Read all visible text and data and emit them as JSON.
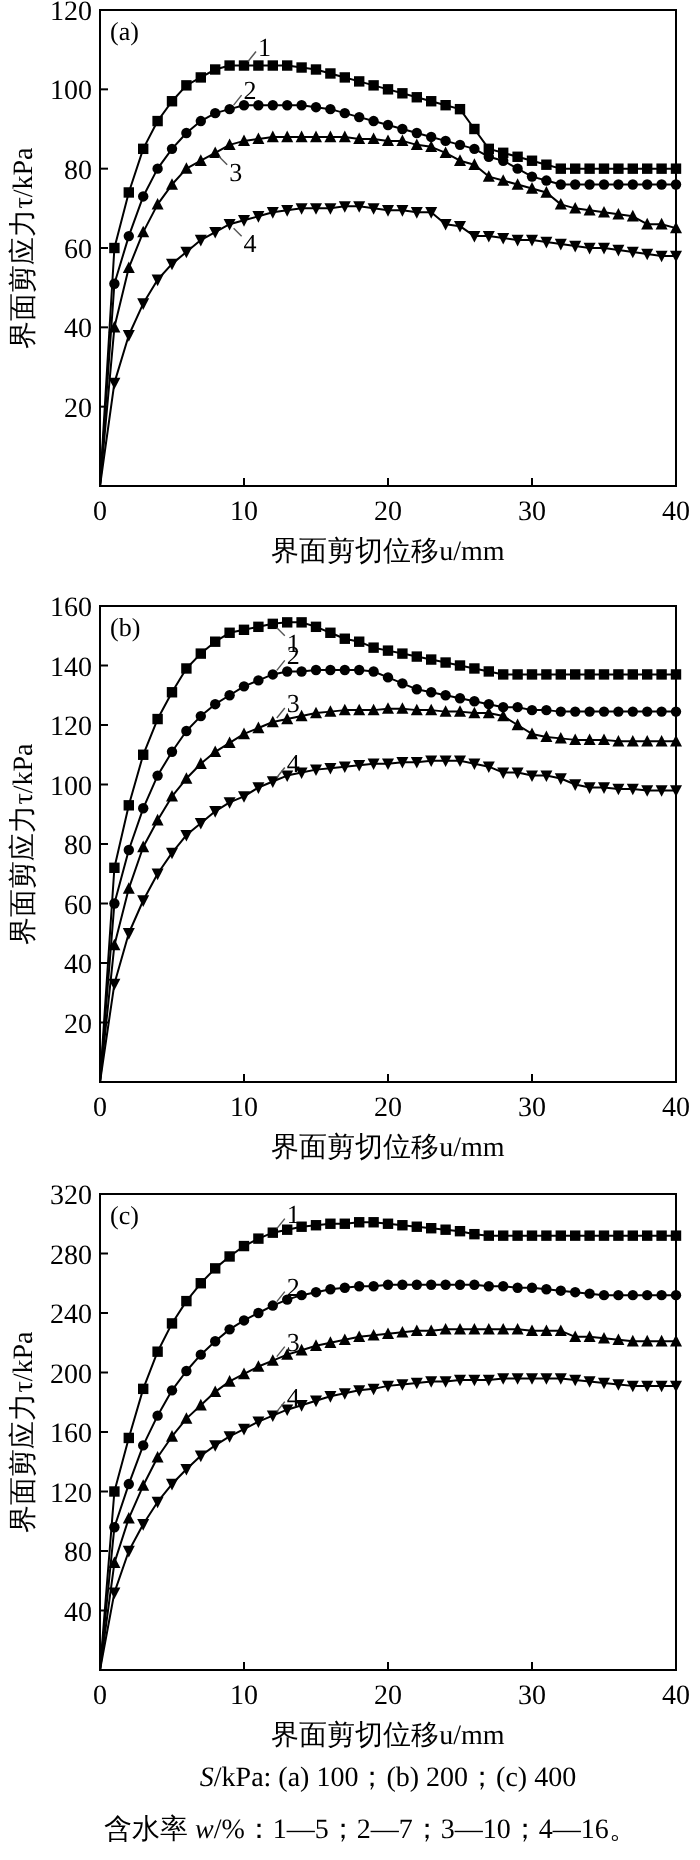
{
  "chart_data": [
    {
      "type": "line",
      "title": "(a)",
      "xlabel": "界面剪切位移u/mm",
      "ylabel": "界面剪应力τ/kPa",
      "xlim": [
        0,
        40
      ],
      "ylim": [
        0,
        120
      ],
      "xticks": [
        0,
        10,
        20,
        30,
        40
      ],
      "yticks": [
        20,
        40,
        60,
        80,
        100,
        120
      ],
      "x": [
        0,
        1,
        2,
        3,
        4,
        5,
        6,
        7,
        8,
        9,
        10,
        11,
        12,
        13,
        14,
        15,
        16,
        17,
        18,
        19,
        20,
        21,
        22,
        23,
        24,
        25,
        26,
        27,
        28,
        29,
        30,
        31,
        32,
        33,
        34,
        35,
        36,
        37,
        38,
        39,
        40
      ],
      "series": [
        {
          "name": "1",
          "color": "#000000",
          "marker": "square",
          "values": [
            0,
            60,
            74,
            85,
            92,
            97,
            101,
            103,
            105,
            106,
            106,
            106,
            106,
            106,
            105.5,
            105,
            104,
            103,
            102,
            101,
            100,
            99,
            98,
            97,
            96,
            95,
            90,
            85,
            84,
            83,
            82,
            81,
            80,
            80,
            80,
            80,
            80,
            80,
            80,
            80,
            80
          ]
        },
        {
          "name": "2",
          "color": "#000000",
          "marker": "circle",
          "values": [
            0,
            51,
            63,
            73,
            80,
            85,
            89,
            92,
            94,
            95,
            96,
            96,
            96,
            96,
            96,
            95.5,
            95,
            94,
            93,
            92,
            91,
            90,
            89,
            88,
            87,
            86,
            85,
            83,
            82,
            80,
            78,
            77,
            76,
            76,
            76,
            76,
            76,
            76,
            76,
            76,
            76
          ]
        },
        {
          "name": "3",
          "color": "#000000",
          "marker": "triangle",
          "values": [
            0,
            40,
            55,
            64,
            71,
            76,
            80,
            82,
            84,
            86,
            87,
            87.5,
            88,
            88,
            88,
            88,
            88,
            88,
            87.5,
            87.5,
            87,
            87,
            86,
            85.5,
            84,
            82,
            81,
            78,
            77,
            76,
            75,
            74,
            71,
            70,
            69.5,
            69,
            68.5,
            68,
            66,
            66,
            65
          ]
        },
        {
          "name": "4",
          "color": "#000000",
          "marker": "triangle-down",
          "values": [
            0,
            26,
            38,
            46,
            52,
            56,
            59,
            62,
            64,
            66,
            67,
            68,
            69,
            69.5,
            70,
            70,
            70,
            70.5,
            70.5,
            70,
            69.5,
            69.5,
            69,
            69,
            66,
            65.5,
            63,
            63,
            62.5,
            62,
            62,
            61.5,
            61,
            60.5,
            60,
            60,
            59.5,
            59,
            58.5,
            58,
            58
          ]
        }
      ]
    },
    {
      "type": "line",
      "title": "(b)",
      "xlabel": "界面剪切位移u/mm",
      "ylabel": "界面剪应力τ/kPa",
      "xlim": [
        0,
        40
      ],
      "ylim": [
        0,
        160
      ],
      "xticks": [
        0,
        10,
        20,
        30,
        40
      ],
      "yticks": [
        20,
        40,
        60,
        80,
        100,
        120,
        140,
        160
      ],
      "x": [
        0,
        1,
        2,
        3,
        4,
        5,
        6,
        7,
        8,
        9,
        10,
        11,
        12,
        13,
        14,
        15,
        16,
        17,
        18,
        19,
        20,
        21,
        22,
        23,
        24,
        25,
        26,
        27,
        28,
        29,
        30,
        31,
        32,
        33,
        34,
        35,
        36,
        37,
        38,
        39,
        40
      ],
      "series": [
        {
          "name": "1",
          "color": "#000000",
          "marker": "square",
          "values": [
            0,
            72,
            93,
            110,
            122,
            131,
            139,
            144,
            148,
            151,
            152,
            153,
            154,
            154.5,
            154.5,
            153,
            151,
            149,
            148,
            146,
            145,
            144,
            143,
            142,
            141,
            140,
            139,
            138,
            137,
            137,
            137,
            137,
            137,
            137,
            137,
            137,
            137,
            137,
            137,
            137,
            137
          ]
        },
        {
          "name": "2",
          "color": "#000000",
          "marker": "circle",
          "values": [
            0,
            60,
            78,
            92,
            103,
            111,
            118,
            123,
            127,
            130,
            133,
            135,
            137,
            138,
            138,
            138.5,
            138.5,
            138.5,
            138.5,
            138,
            136,
            134,
            132,
            131,
            130,
            129,
            128,
            127,
            126,
            126,
            125,
            125,
            124.5,
            124.5,
            124.5,
            124.5,
            124.5,
            124.5,
            124.5,
            124.5,
            124.5
          ]
        },
        {
          "name": "3",
          "color": "#000000",
          "marker": "triangle",
          "values": [
            0,
            46,
            65,
            79,
            88,
            96,
            102,
            107,
            111,
            114,
            117,
            119,
            121,
            122,
            123,
            124,
            124.5,
            125,
            125,
            125,
            125.5,
            125.5,
            125,
            125,
            124.5,
            124.5,
            124,
            124,
            123,
            120,
            117,
            116,
            115.5,
            115,
            115,
            115,
            114.5,
            114.5,
            114.5,
            114.5,
            114.5
          ]
        },
        {
          "name": "4",
          "color": "#000000",
          "marker": "triangle-down",
          "values": [
            0,
            33,
            50,
            61,
            70,
            77,
            83,
            87,
            91,
            94,
            96,
            99,
            101,
            103,
            104,
            105,
            105.5,
            106,
            106.5,
            107,
            107,
            107.5,
            107.5,
            108,
            108,
            108,
            107,
            106,
            104,
            104,
            103,
            103,
            102,
            100,
            99,
            99,
            98.5,
            98.5,
            98,
            98,
            98
          ]
        }
      ]
    },
    {
      "type": "line",
      "title": "(c)",
      "xlabel": "界面剪切位移u/mm",
      "ylabel": "界面剪应力τ/kPa",
      "xlim": [
        0,
        40
      ],
      "ylim": [
        0,
        320
      ],
      "xticks": [
        0,
        10,
        20,
        30,
        40
      ],
      "yticks": [
        40,
        80,
        120,
        160,
        200,
        240,
        280,
        320
      ],
      "x": [
        0,
        1,
        2,
        3,
        4,
        5,
        6,
        7,
        8,
        9,
        10,
        11,
        12,
        13,
        14,
        15,
        16,
        17,
        18,
        19,
        20,
        21,
        22,
        23,
        24,
        25,
        26,
        27,
        28,
        29,
        30,
        31,
        32,
        33,
        34,
        35,
        36,
        37,
        38,
        39,
        40
      ],
      "series": [
        {
          "name": "1",
          "color": "#000000",
          "marker": "square",
          "values": [
            0,
            120,
            156,
            189,
            214,
            233,
            248,
            260,
            270,
            278,
            285,
            290,
            294,
            296,
            298,
            299,
            300,
            300,
            301,
            301,
            300,
            299,
            298,
            297,
            296,
            295,
            293,
            292,
            292,
            292,
            292,
            292,
            292,
            292,
            292,
            292,
            292,
            292,
            292,
            292,
            292
          ]
        },
        {
          "name": "2",
          "color": "#000000",
          "marker": "circle",
          "values": [
            0,
            96,
            125,
            151,
            171,
            188,
            201,
            212,
            221,
            229,
            235,
            240,
            245,
            249,
            252,
            254,
            256,
            257,
            258,
            258,
            259,
            259,
            259,
            259,
            259,
            259,
            259,
            258,
            258,
            257,
            257,
            256,
            255,
            254,
            253,
            252,
            252,
            252,
            252,
            252,
            252
          ]
        },
        {
          "name": "3",
          "color": "#000000",
          "marker": "triangle",
          "values": [
            0,
            72,
            102,
            124,
            143,
            157,
            169,
            178,
            187,
            194,
            199,
            204,
            208,
            212,
            215,
            218,
            220,
            222,
            224,
            225,
            226,
            227,
            228,
            228,
            229,
            229,
            229,
            229,
            229,
            229,
            228,
            228,
            228,
            224,
            224,
            223,
            222,
            221,
            221,
            221,
            221
          ]
        },
        {
          "name": "4",
          "color": "#000000",
          "marker": "triangle-down",
          "values": [
            0,
            52,
            80,
            98,
            113,
            125,
            135,
            144,
            151,
            157,
            162,
            167,
            171,
            175,
            178,
            181,
            184,
            186,
            188,
            189,
            191,
            192,
            193,
            194,
            194,
            195,
            195,
            195,
            196,
            196,
            196,
            196,
            196,
            195,
            194,
            193,
            192,
            191,
            191,
            191,
            191
          ]
        }
      ],
      "annotations": [
        "*S*/kPa: (a) 100；(b) 200；(c) 400",
        "含水率 *w*/%：1—5；2—7；3—10；4—16。"
      ]
    }
  ]
}
